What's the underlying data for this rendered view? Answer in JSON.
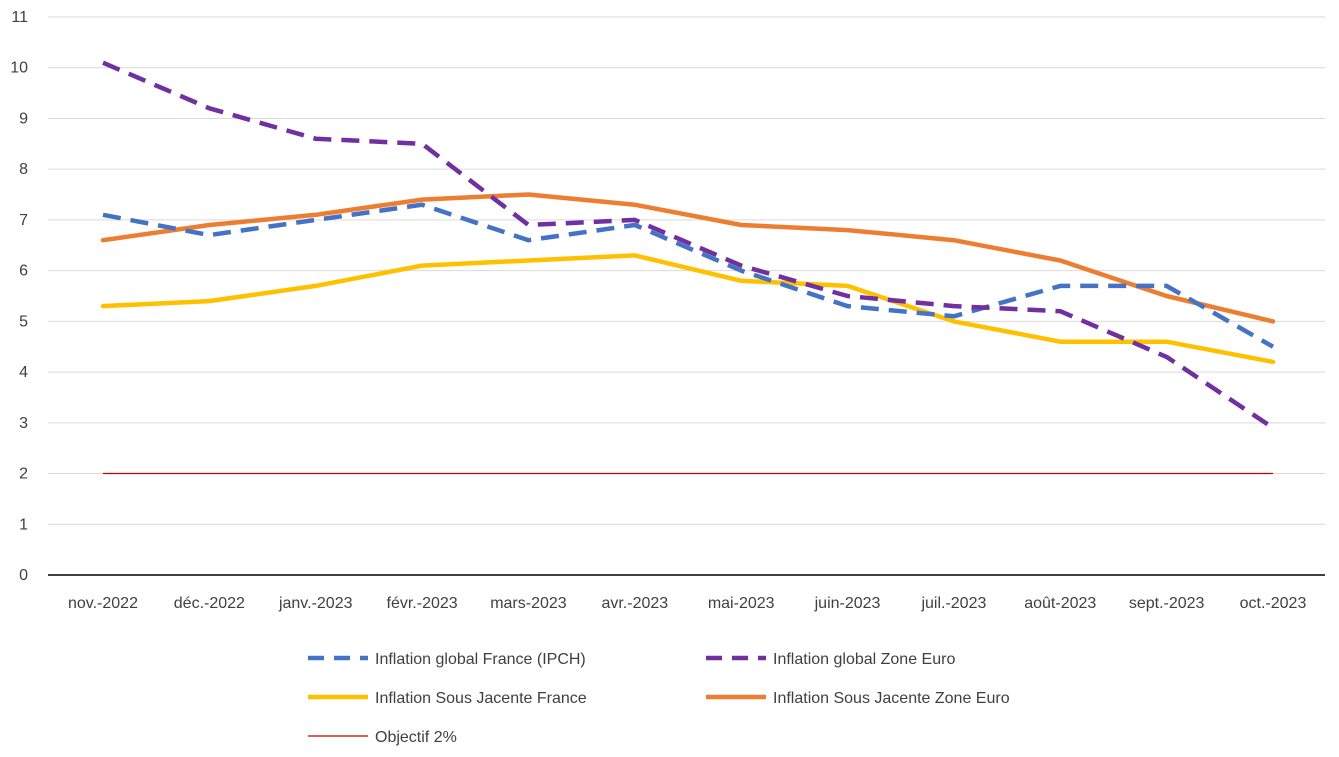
{
  "chart_data": {
    "type": "line",
    "title": "",
    "xlabel": "",
    "ylabel": "",
    "ylim": [
      0,
      11
    ],
    "yticks": [
      0,
      1,
      2,
      3,
      4,
      5,
      6,
      7,
      8,
      9,
      10,
      11
    ],
    "grid": true,
    "legend_position": "bottom",
    "categories": [
      "nov.-2022",
      "déc.-2022",
      "janv.-2023",
      "févr.-2023",
      "mars-2023",
      "avr.-2023",
      "mai-2023",
      "juin-2023",
      "juil.-2023",
      "août-2023",
      "sept.-2023",
      "oct.-2023"
    ],
    "series": [
      {
        "name": "Inflation global France (IPCH)",
        "color": "#4472c4",
        "style": "dashed",
        "values": [
          7.1,
          6.7,
          7.0,
          7.3,
          6.6,
          6.9,
          6.0,
          5.3,
          5.1,
          5.7,
          5.7,
          4.5
        ]
      },
      {
        "name": "Inflation global Zone Euro",
        "color": "#7030a0",
        "style": "dashed",
        "values": [
          10.1,
          9.2,
          8.6,
          8.5,
          6.9,
          7.0,
          6.1,
          5.5,
          5.3,
          5.2,
          4.3,
          2.9
        ]
      },
      {
        "name": "Inflation Sous Jacente France",
        "color": "#ffc000",
        "style": "solid",
        "values": [
          5.3,
          5.4,
          5.7,
          6.1,
          6.2,
          6.3,
          5.8,
          5.7,
          5.0,
          4.6,
          4.6,
          4.2
        ]
      },
      {
        "name": "Inflation Sous Jacente Zone Euro",
        "color": "#ed7d31",
        "style": "solid",
        "values": [
          6.6,
          6.9,
          7.1,
          7.4,
          7.5,
          7.3,
          6.9,
          6.8,
          6.6,
          6.2,
          5.5,
          5.0
        ]
      },
      {
        "name": "Objectif 2%",
        "color": "#c00000",
        "style": "thin",
        "values": [
          2,
          2,
          2,
          2,
          2,
          2,
          2,
          2,
          2,
          2,
          2,
          2
        ]
      }
    ]
  }
}
